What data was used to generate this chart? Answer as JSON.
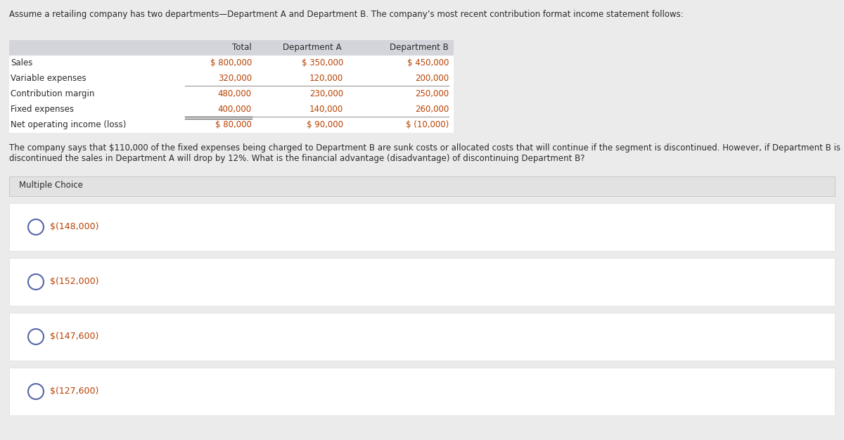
{
  "title_text": "Assume a retailing company has two departments—Department A and Department B. The company’s most recent contribution format income statement follows:",
  "table_header": [
    "",
    "Total",
    "Department A",
    "Department B"
  ],
  "table_rows": [
    [
      "Sales",
      "$ 800,000",
      "$ 350,000",
      "$ 450,000"
    ],
    [
      "Variable expenses",
      "320,000",
      "120,000",
      "200,000"
    ],
    [
      "Contribution margin",
      "480,000",
      "230,000",
      "250,000"
    ],
    [
      "Fixed expenses",
      "400,000",
      "140,000",
      "260,000"
    ],
    [
      "Net operating income (loss)",
      "$ 80,000",
      "$ 90,000",
      "$ (10,000)"
    ]
  ],
  "underline_after_rows": [
    1,
    3
  ],
  "double_underline_after_row": 4,
  "question_line1": "The company says that $110,000 of the fixed expenses being charged to Department B are sunk costs or allocated costs that will continue if the segment is discontinued. However, if Department B is",
  "question_line2": "discontinued the sales in Department A will drop by 12%. What is the financial advantage (disadvantage) of discontinuing Department B?",
  "mc_label": "Multiple Choice",
  "choices": [
    "$(148,000)",
    "$(152,000)",
    "$(147,600)",
    "$(127,600)"
  ],
  "bg_color": "#ebebeb",
  "white": "#ffffff",
  "mc_header_bg": "#e2e2e2",
  "table_header_bg": "#d4d4dc",
  "text_color": "#2a2a2a",
  "value_color": "#b84000",
  "radio_color": "#5566aa",
  "choice_text_color": "#b84000",
  "title_color": "#2a2a2a",
  "question_text_color": "#2a2a2a",
  "separator_color": "#bbbbbb",
  "choice_sep_color": "#dddddd"
}
